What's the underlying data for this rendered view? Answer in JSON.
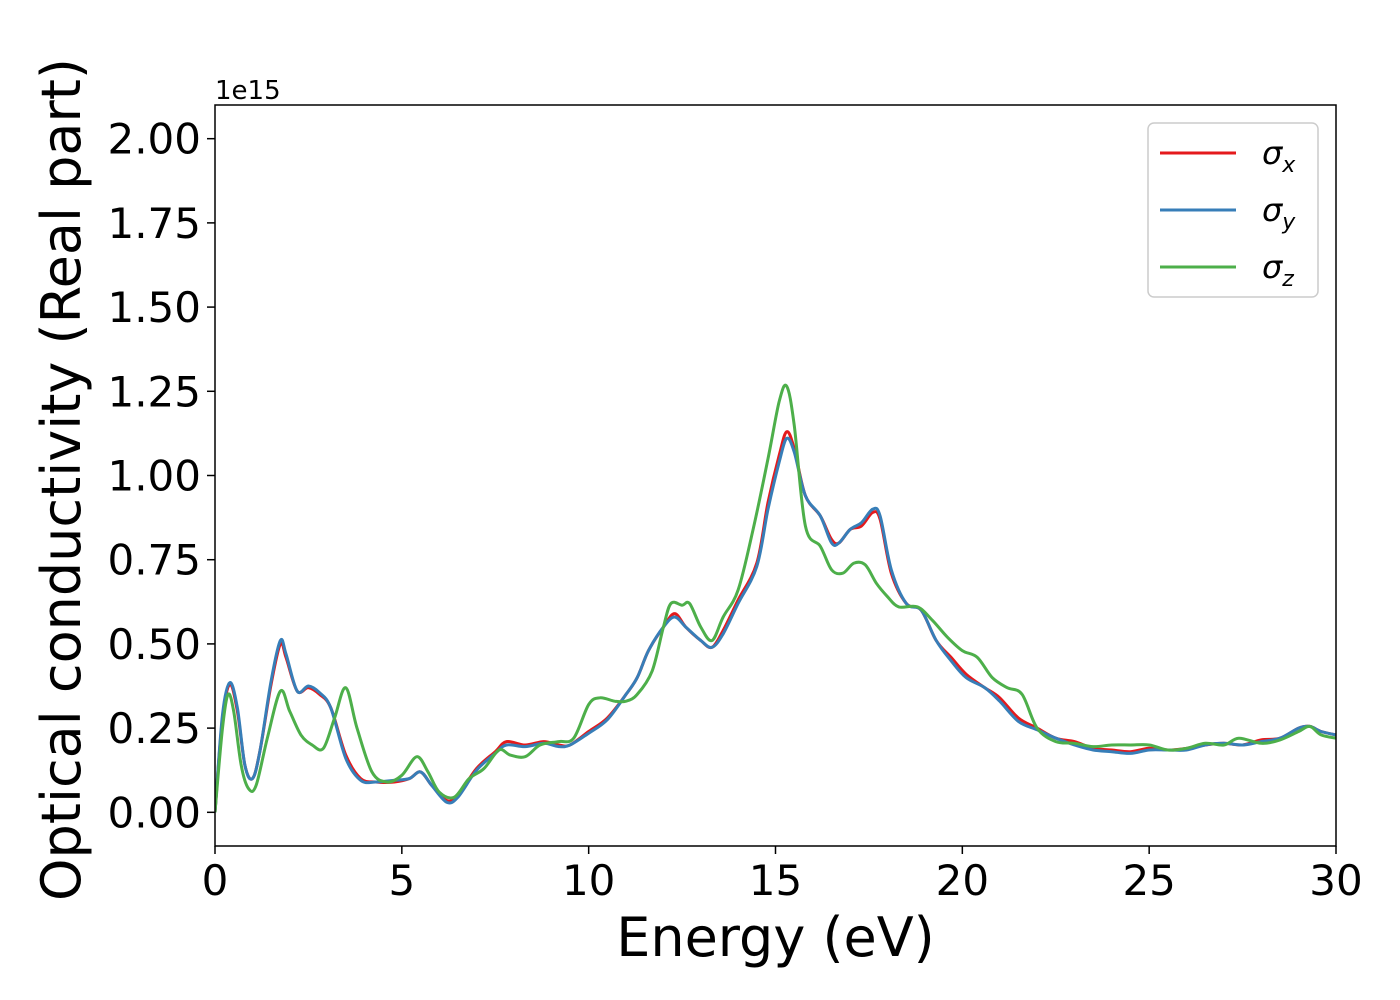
{
  "chart_data": {
    "type": "line",
    "title": "",
    "xlabel": "Energy (eV)",
    "ylabel": "Optical conductivity (Real part)",
    "y_offset_label": "1e15",
    "xlim": [
      0,
      30
    ],
    "ylim": [
      -0.1,
      2.1
    ],
    "xticks": [
      0,
      5,
      10,
      15,
      20,
      25,
      30
    ],
    "xtick_labels": [
      "0",
      "5",
      "10",
      "15",
      "20",
      "25",
      "30"
    ],
    "yticks": [
      0,
      0.25,
      0.5,
      0.75,
      1.0,
      1.25,
      1.5,
      1.75,
      2.0
    ],
    "ytick_labels": [
      "0.00",
      "0.25",
      "0.50",
      "0.75",
      "1.00",
      "1.25",
      "1.50",
      "1.75",
      "2.00"
    ],
    "grid": false,
    "legend_position": "top-right",
    "series": [
      {
        "name": "σx",
        "symbol": "σ",
        "subscript": "x",
        "color": "#e41a1c",
        "points": [
          [
            0,
            0
          ],
          [
            0.2,
            0.28
          ],
          [
            0.4,
            0.38
          ],
          [
            0.6,
            0.3
          ],
          [
            0.8,
            0.14
          ],
          [
            1.0,
            0.1
          ],
          [
            1.2,
            0.18
          ],
          [
            1.5,
            0.38
          ],
          [
            1.75,
            0.5
          ],
          [
            1.9,
            0.46
          ],
          [
            2.2,
            0.36
          ],
          [
            2.5,
            0.37
          ],
          [
            2.8,
            0.35
          ],
          [
            3.1,
            0.31
          ],
          [
            3.5,
            0.17
          ],
          [
            3.9,
            0.1
          ],
          [
            4.3,
            0.09
          ],
          [
            4.8,
            0.09
          ],
          [
            5.2,
            0.1
          ],
          [
            5.5,
            0.12
          ],
          [
            5.8,
            0.08
          ],
          [
            6.2,
            0.035
          ],
          [
            6.5,
            0.05
          ],
          [
            7.0,
            0.13
          ],
          [
            7.5,
            0.18
          ],
          [
            7.8,
            0.21
          ],
          [
            8.3,
            0.2
          ],
          [
            8.8,
            0.21
          ],
          [
            9.2,
            0.2
          ],
          [
            9.5,
            0.2
          ],
          [
            10.0,
            0.24
          ],
          [
            10.5,
            0.28
          ],
          [
            11.0,
            0.35
          ],
          [
            11.3,
            0.4
          ],
          [
            11.6,
            0.48
          ],
          [
            12.0,
            0.55
          ],
          [
            12.3,
            0.59
          ],
          [
            12.6,
            0.55
          ],
          [
            13.0,
            0.51
          ],
          [
            13.3,
            0.49
          ],
          [
            13.6,
            0.54
          ],
          [
            14.0,
            0.63
          ],
          [
            14.5,
            0.74
          ],
          [
            14.8,
            0.92
          ],
          [
            15.1,
            1.06
          ],
          [
            15.3,
            1.13
          ],
          [
            15.5,
            1.08
          ],
          [
            15.8,
            0.94
          ],
          [
            16.2,
            0.88
          ],
          [
            16.5,
            0.81
          ],
          [
            16.7,
            0.8
          ],
          [
            17.0,
            0.84
          ],
          [
            17.3,
            0.85
          ],
          [
            17.6,
            0.89
          ],
          [
            17.8,
            0.87
          ],
          [
            18.1,
            0.71
          ],
          [
            18.5,
            0.62
          ],
          [
            18.9,
            0.6
          ],
          [
            19.3,
            0.51
          ],
          [
            19.7,
            0.46
          ],
          [
            20.1,
            0.41
          ],
          [
            20.6,
            0.37
          ],
          [
            21.0,
            0.34
          ],
          [
            21.5,
            0.28
          ],
          [
            22.0,
            0.25
          ],
          [
            22.5,
            0.22
          ],
          [
            23.0,
            0.21
          ],
          [
            23.5,
            0.19
          ],
          [
            24.0,
            0.185
          ],
          [
            24.5,
            0.18
          ],
          [
            25.0,
            0.19
          ],
          [
            25.5,
            0.185
          ],
          [
            26.0,
            0.19
          ],
          [
            26.5,
            0.2
          ],
          [
            27.0,
            0.205
          ],
          [
            27.5,
            0.2
          ],
          [
            28.0,
            0.215
          ],
          [
            28.5,
            0.22
          ],
          [
            29.0,
            0.25
          ],
          [
            29.3,
            0.255
          ],
          [
            29.6,
            0.24
          ],
          [
            30.0,
            0.23
          ]
        ]
      },
      {
        "name": "σy",
        "symbol": "σ",
        "subscript": "y",
        "color": "#377eb8",
        "points": [
          [
            0,
            0
          ],
          [
            0.2,
            0.29
          ],
          [
            0.4,
            0.385
          ],
          [
            0.6,
            0.31
          ],
          [
            0.8,
            0.14
          ],
          [
            1.0,
            0.1
          ],
          [
            1.2,
            0.18
          ],
          [
            1.5,
            0.39
          ],
          [
            1.75,
            0.51
          ],
          [
            1.9,
            0.47
          ],
          [
            2.2,
            0.36
          ],
          [
            2.5,
            0.375
          ],
          [
            2.8,
            0.355
          ],
          [
            3.1,
            0.31
          ],
          [
            3.5,
            0.16
          ],
          [
            3.9,
            0.095
          ],
          [
            4.3,
            0.09
          ],
          [
            4.8,
            0.095
          ],
          [
            5.2,
            0.1
          ],
          [
            5.5,
            0.12
          ],
          [
            5.8,
            0.08
          ],
          [
            6.2,
            0.03
          ],
          [
            6.5,
            0.045
          ],
          [
            7.0,
            0.125
          ],
          [
            7.5,
            0.175
          ],
          [
            7.8,
            0.2
          ],
          [
            8.3,
            0.195
          ],
          [
            8.8,
            0.205
          ],
          [
            9.2,
            0.195
          ],
          [
            9.5,
            0.2
          ],
          [
            10.0,
            0.235
          ],
          [
            10.5,
            0.275
          ],
          [
            11.0,
            0.35
          ],
          [
            11.3,
            0.4
          ],
          [
            11.6,
            0.48
          ],
          [
            12.0,
            0.55
          ],
          [
            12.3,
            0.58
          ],
          [
            12.6,
            0.55
          ],
          [
            13.0,
            0.51
          ],
          [
            13.3,
            0.49
          ],
          [
            13.6,
            0.53
          ],
          [
            14.0,
            0.62
          ],
          [
            14.5,
            0.73
          ],
          [
            14.8,
            0.9
          ],
          [
            15.1,
            1.04
          ],
          [
            15.3,
            1.11
          ],
          [
            15.5,
            1.07
          ],
          [
            15.8,
            0.94
          ],
          [
            16.2,
            0.88
          ],
          [
            16.5,
            0.8
          ],
          [
            16.7,
            0.8
          ],
          [
            17.0,
            0.84
          ],
          [
            17.3,
            0.86
          ],
          [
            17.6,
            0.9
          ],
          [
            17.8,
            0.88
          ],
          [
            18.1,
            0.72
          ],
          [
            18.5,
            0.62
          ],
          [
            18.9,
            0.6
          ],
          [
            19.3,
            0.51
          ],
          [
            19.7,
            0.45
          ],
          [
            20.1,
            0.4
          ],
          [
            20.6,
            0.37
          ],
          [
            21.0,
            0.33
          ],
          [
            21.5,
            0.27
          ],
          [
            22.0,
            0.245
          ],
          [
            22.5,
            0.22
          ],
          [
            23.0,
            0.2
          ],
          [
            23.5,
            0.185
          ],
          [
            24.0,
            0.18
          ],
          [
            24.5,
            0.175
          ],
          [
            25.0,
            0.185
          ],
          [
            25.5,
            0.185
          ],
          [
            26.0,
            0.185
          ],
          [
            26.5,
            0.2
          ],
          [
            27.0,
            0.205
          ],
          [
            27.5,
            0.2
          ],
          [
            28.0,
            0.21
          ],
          [
            28.5,
            0.22
          ],
          [
            29.0,
            0.25
          ],
          [
            29.3,
            0.255
          ],
          [
            29.6,
            0.24
          ],
          [
            30.0,
            0.23
          ]
        ]
      },
      {
        "name": "σz",
        "symbol": "σ",
        "subscript": "z",
        "color": "#4daf4a",
        "points": [
          [
            0,
            0
          ],
          [
            0.2,
            0.25
          ],
          [
            0.35,
            0.35
          ],
          [
            0.5,
            0.3
          ],
          [
            0.7,
            0.14
          ],
          [
            0.9,
            0.07
          ],
          [
            1.1,
            0.08
          ],
          [
            1.4,
            0.22
          ],
          [
            1.75,
            0.36
          ],
          [
            2.0,
            0.3
          ],
          [
            2.3,
            0.23
          ],
          [
            2.6,
            0.2
          ],
          [
            2.9,
            0.19
          ],
          [
            3.2,
            0.28
          ],
          [
            3.5,
            0.37
          ],
          [
            3.8,
            0.25
          ],
          [
            4.2,
            0.12
          ],
          [
            4.6,
            0.09
          ],
          [
            5.0,
            0.11
          ],
          [
            5.4,
            0.165
          ],
          [
            5.7,
            0.12
          ],
          [
            6.0,
            0.06
          ],
          [
            6.4,
            0.045
          ],
          [
            6.8,
            0.1
          ],
          [
            7.2,
            0.13
          ],
          [
            7.6,
            0.185
          ],
          [
            7.9,
            0.17
          ],
          [
            8.3,
            0.165
          ],
          [
            8.7,
            0.2
          ],
          [
            9.2,
            0.21
          ],
          [
            9.6,
            0.22
          ],
          [
            10.0,
            0.32
          ],
          [
            10.3,
            0.34
          ],
          [
            10.7,
            0.33
          ],
          [
            11.0,
            0.33
          ],
          [
            11.3,
            0.35
          ],
          [
            11.7,
            0.42
          ],
          [
            12.0,
            0.55
          ],
          [
            12.2,
            0.62
          ],
          [
            12.5,
            0.615
          ],
          [
            12.7,
            0.62
          ],
          [
            13.0,
            0.55
          ],
          [
            13.3,
            0.51
          ],
          [
            13.6,
            0.58
          ],
          [
            14.0,
            0.66
          ],
          [
            14.4,
            0.84
          ],
          [
            14.8,
            1.05
          ],
          [
            15.1,
            1.22
          ],
          [
            15.3,
            1.265
          ],
          [
            15.5,
            1.15
          ],
          [
            15.8,
            0.85
          ],
          [
            16.2,
            0.79
          ],
          [
            16.5,
            0.72
          ],
          [
            16.8,
            0.71
          ],
          [
            17.1,
            0.74
          ],
          [
            17.4,
            0.735
          ],
          [
            17.7,
            0.68
          ],
          [
            18.0,
            0.64
          ],
          [
            18.3,
            0.61
          ],
          [
            18.8,
            0.61
          ],
          [
            19.2,
            0.57
          ],
          [
            19.6,
            0.52
          ],
          [
            20.0,
            0.48
          ],
          [
            20.4,
            0.46
          ],
          [
            20.8,
            0.4
          ],
          [
            21.2,
            0.37
          ],
          [
            21.6,
            0.35
          ],
          [
            22.0,
            0.25
          ],
          [
            22.5,
            0.21
          ],
          [
            23.0,
            0.205
          ],
          [
            23.5,
            0.195
          ],
          [
            24.0,
            0.2
          ],
          [
            24.5,
            0.2
          ],
          [
            25.0,
            0.2
          ],
          [
            25.5,
            0.185
          ],
          [
            26.0,
            0.19
          ],
          [
            26.5,
            0.205
          ],
          [
            27.0,
            0.2
          ],
          [
            27.4,
            0.22
          ],
          [
            28.0,
            0.205
          ],
          [
            28.5,
            0.215
          ],
          [
            29.0,
            0.24
          ],
          [
            29.3,
            0.255
          ],
          [
            29.6,
            0.23
          ],
          [
            30.0,
            0.22
          ]
        ]
      }
    ]
  }
}
